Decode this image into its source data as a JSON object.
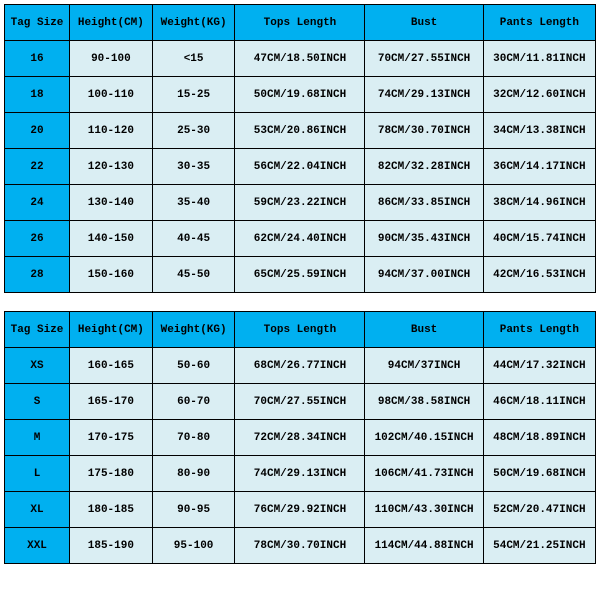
{
  "colors": {
    "header_bg": "#00b0f0",
    "row_bg": "#daeef3",
    "tag_col_bg": "#00b0f0",
    "border": "#000000",
    "text": "#000000"
  },
  "columns": [
    "Tag Size",
    "Height(CM)",
    "Weight(KG)",
    "Tops Length",
    "Bust",
    "Pants Length"
  ],
  "table1": {
    "rows": [
      [
        "16",
        "90-100",
        "<15",
        "47CM/18.50INCH",
        "70CM/27.55INCH",
        "30CM/11.81INCH"
      ],
      [
        "18",
        "100-110",
        "15-25",
        "50CM/19.68INCH",
        "74CM/29.13INCH",
        "32CM/12.60INCH"
      ],
      [
        "20",
        "110-120",
        "25-30",
        "53CM/20.86INCH",
        "78CM/30.70INCH",
        "34CM/13.38INCH"
      ],
      [
        "22",
        "120-130",
        "30-35",
        "56CM/22.04INCH",
        "82CM/32.28INCH",
        "36CM/14.17INCH"
      ],
      [
        "24",
        "130-140",
        "35-40",
        "59CM/23.22INCH",
        "86CM/33.85INCH",
        "38CM/14.96INCH"
      ],
      [
        "26",
        "140-150",
        "40-45",
        "62CM/24.40INCH",
        "90CM/35.43INCH",
        "40CM/15.74INCH"
      ],
      [
        "28",
        "150-160",
        "45-50",
        "65CM/25.59INCH",
        "94CM/37.00INCH",
        "42CM/16.53INCH"
      ]
    ]
  },
  "table2": {
    "rows": [
      [
        "XS",
        "160-165",
        "50-60",
        "68CM/26.77INCH",
        "94CM/37INCH",
        "44CM/17.32INCH"
      ],
      [
        "S",
        "165-170",
        "60-70",
        "70CM/27.55INCH",
        "98CM/38.58INCH",
        "46CM/18.11INCH"
      ],
      [
        "M",
        "170-175",
        "70-80",
        "72CM/28.34INCH",
        "102CM/40.15INCH",
        "48CM/18.89INCH"
      ],
      [
        "L",
        "175-180",
        "80-90",
        "74CM/29.13INCH",
        "106CM/41.73INCH",
        "50CM/19.68INCH"
      ],
      [
        "XL",
        "180-185",
        "90-95",
        "76CM/29.92INCH",
        "110CM/43.30INCH",
        "52CM/20.47INCH"
      ],
      [
        "XXL",
        "185-190",
        "95-100",
        "78CM/30.70INCH",
        "114CM/44.88INCH",
        "54CM/21.25INCH"
      ]
    ]
  }
}
